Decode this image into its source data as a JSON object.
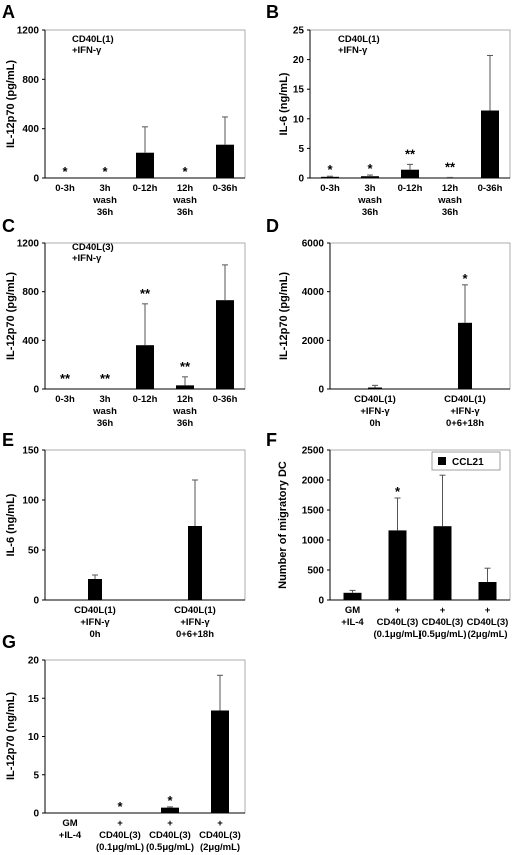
{
  "chart_data": [
    {
      "panel": "A",
      "type": "bar",
      "ylabel": "IL-12p70 (pg/mL)",
      "annotation": [
        "CD40L(1)",
        "+IFN-γ"
      ],
      "ylim": [
        0,
        1200
      ],
      "yticks": [
        "0",
        "400",
        "800",
        "1200"
      ],
      "categories": [
        [
          "0-3h"
        ],
        [
          "3h",
          "wash",
          "36h"
        ],
        [
          "0-12h"
        ],
        [
          "12h",
          "wash",
          "36h"
        ],
        [
          "0-36h"
        ]
      ],
      "values": [
        0,
        0,
        205,
        0,
        270
      ],
      "error": [
        0,
        0,
        210,
        0,
        225
      ],
      "significance": [
        "*",
        "*",
        "",
        "*",
        ""
      ]
    },
    {
      "panel": "B",
      "type": "bar",
      "ylabel": "IL-6 (ng/mL)",
      "annotation": [
        "CD40L(1)",
        "+IFN-γ"
      ],
      "ylim": [
        0,
        25
      ],
      "yticks": [
        "0",
        "5",
        "10",
        "15",
        "20",
        "25"
      ],
      "categories": [
        [
          "0-3h"
        ],
        [
          "3h",
          "wash",
          "36h"
        ],
        [
          "0-12h"
        ],
        [
          "12h",
          "wash",
          "36h"
        ],
        [
          "0-36h"
        ]
      ],
      "values": [
        0.2,
        0.3,
        1.4,
        0.05,
        11.4
      ],
      "error": [
        0.1,
        0.2,
        0.9,
        0.05,
        9.3
      ],
      "significance": [
        "*",
        "*",
        "**",
        "**",
        ""
      ]
    },
    {
      "panel": "C",
      "type": "bar",
      "ylabel": "IL-12p70 (pg/mL)",
      "annotation": [
        "CD40L(3)",
        "+IFN-γ"
      ],
      "ylim": [
        0,
        1200
      ],
      "yticks": [
        "0",
        "400",
        "800",
        "1200"
      ],
      "categories": [
        [
          "0-3h"
        ],
        [
          "3h",
          "wash",
          "36h"
        ],
        [
          "0-12h"
        ],
        [
          "12h",
          "wash",
          "36h"
        ],
        [
          "0-36h"
        ]
      ],
      "values": [
        0,
        0,
        360,
        30,
        730
      ],
      "error": [
        0,
        0,
        340,
        70,
        290
      ],
      "significance": [
        "**",
        "**",
        "**",
        "**",
        ""
      ]
    },
    {
      "panel": "D",
      "type": "bar",
      "ylabel": "IL-12p70 (pg/mL)",
      "ylim": [
        0,
        6000
      ],
      "yticks": [
        "0",
        "2000",
        "4000",
        "6000"
      ],
      "categories": [
        [
          "CD40L(1)",
          "+IFN-γ",
          "0h"
        ],
        [
          "CD40L(1)",
          "+IFN-γ",
          "0+6+18h"
        ]
      ],
      "values": [
        60,
        2720
      ],
      "error": [
        90,
        1560
      ],
      "significance": [
        "",
        "*"
      ]
    },
    {
      "panel": "E",
      "type": "bar",
      "ylabel": "IL-6 (ng/mL)",
      "ylim": [
        0,
        150
      ],
      "yticks": [
        "0",
        "50",
        "100",
        "150"
      ],
      "categories": [
        [
          "CD40L(1)",
          "+IFN-γ",
          "0h"
        ],
        [
          "CD40L(1)",
          "+IFN-γ",
          "0+6+18h"
        ]
      ],
      "values": [
        21,
        74
      ],
      "error": [
        4,
        46
      ],
      "significance": [
        "",
        ""
      ]
    },
    {
      "panel": "F",
      "type": "bar",
      "ylabel": "Number of migratory DC",
      "legend": "CCL21",
      "legend_position": "top-right",
      "ylim": [
        0,
        2500
      ],
      "yticks": [
        "0",
        "500",
        "1000",
        "1500",
        "2000",
        "2500"
      ],
      "categories": [
        [
          "GM",
          "+IL-4"
        ],
        [
          "+",
          "CD40L(3)",
          "(0.1μg/mL)"
        ],
        [
          "+",
          "CD40L(3)",
          "(0.5μg/mL)"
        ],
        [
          "+",
          "CD40L(3)",
          "(2μg/mL)"
        ]
      ],
      "values": [
        120,
        1160,
        1230,
        300
      ],
      "error": [
        40,
        540,
        850,
        230
      ],
      "significance": [
        "",
        "*",
        "",
        ""
      ]
    },
    {
      "panel": "G",
      "type": "bar",
      "ylabel": "IL-12p70 (ng/mL)",
      "ylim": [
        0,
        20
      ],
      "yticks": [
        "0",
        "5",
        "10",
        "15",
        "20"
      ],
      "categories": [
        [
          "GM",
          "+IL-4"
        ],
        [
          "+",
          "CD40L(3)",
          "(0.1μg/mL)"
        ],
        [
          "+",
          "CD40L(3)",
          "(0.5μg/mL)"
        ],
        [
          "+",
          "CD40L(3)",
          "(2μg/mL)"
        ]
      ],
      "values": [
        0,
        0,
        0.7,
        13.4
      ],
      "error": [
        0,
        0,
        0.1,
        4.6
      ],
      "significance": [
        "",
        "*",
        "*",
        ""
      ]
    }
  ]
}
